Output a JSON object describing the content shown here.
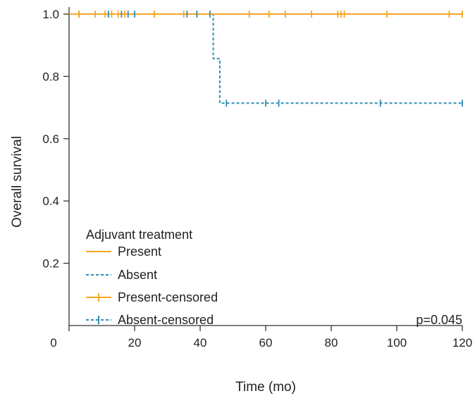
{
  "chart_data": {
    "type": "line",
    "subtype": "kaplan-meier",
    "xlabel": "Time (mo)",
    "ylabel": "Overall survival",
    "xlim": [
      0,
      120
    ],
    "ylim": [
      0,
      1.0
    ],
    "xticks": [
      0,
      20,
      40,
      60,
      80,
      100,
      120
    ],
    "yticks": [
      0.2,
      0.4,
      0.6,
      0.8,
      1.0
    ],
    "xtick_labels": [
      "0",
      "20",
      "40",
      "60",
      "80",
      "100",
      "120"
    ],
    "ytick_labels": [
      "0.2",
      "0.4",
      "0.6",
      "0.8",
      "1.0"
    ],
    "grid": false,
    "legend": {
      "title": "Adjuvant treatment",
      "placement": "bottom-left",
      "entries": [
        "Present",
        "Absent",
        "Present-censored",
        "Absent-censored"
      ]
    },
    "annotation": "p=0.045",
    "series": [
      {
        "name": "Present",
        "color": "#f5a623",
        "dash": "solid",
        "steps": [
          [
            0,
            1.0
          ],
          [
            120,
            1.0
          ]
        ],
        "censored": [
          [
            3,
            1.0
          ],
          [
            8,
            1.0
          ],
          [
            11,
            1.0
          ],
          [
            13,
            1.0
          ],
          [
            15,
            1.0
          ],
          [
            17,
            1.0
          ],
          [
            26,
            1.0
          ],
          [
            35,
            1.0
          ],
          [
            55,
            1.0
          ],
          [
            61,
            1.0
          ],
          [
            66,
            1.0
          ],
          [
            74,
            1.0
          ],
          [
            82,
            1.0
          ],
          [
            83,
            1.0
          ],
          [
            84,
            1.0
          ],
          [
            97,
            1.0
          ],
          [
            116,
            1.0
          ],
          [
            120,
            1.0
          ]
        ]
      },
      {
        "name": "Absent",
        "color": "#2e8fb5",
        "dash": "dashed",
        "steps": [
          [
            0,
            1.0
          ],
          [
            44,
            1.0
          ],
          [
            44,
            0.857
          ],
          [
            46,
            0.857
          ],
          [
            46,
            0.714
          ],
          [
            120,
            0.714
          ]
        ],
        "censored": [
          [
            3,
            1.0
          ],
          [
            12,
            1.0
          ],
          [
            16,
            1.0
          ],
          [
            18,
            1.0
          ],
          [
            20,
            1.0
          ],
          [
            36,
            1.0
          ],
          [
            39,
            1.0
          ],
          [
            43,
            1.0
          ],
          [
            48,
            0.714
          ],
          [
            60,
            0.714
          ],
          [
            64,
            0.714
          ],
          [
            95,
            0.714
          ],
          [
            120,
            0.714
          ]
        ]
      }
    ]
  }
}
